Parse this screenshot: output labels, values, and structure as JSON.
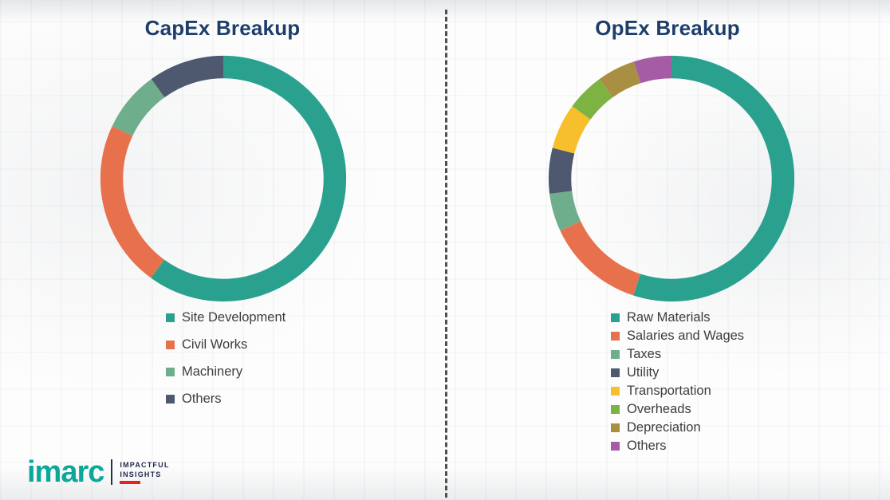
{
  "chart_data": [
    {
      "type": "pie",
      "subtype": "donut",
      "title": "CapEx Breakup",
      "labels": [
        "Site Development",
        "Civil Works",
        "Machinery",
        "Others"
      ],
      "values": [
        60,
        22,
        8,
        10
      ],
      "colors": [
        "#2AA18F",
        "#E7714C",
        "#6FAE8C",
        "#4E586E"
      ],
      "legend_position": "bottom-left",
      "start_angle_deg": -90,
      "direction": "clockwise"
    },
    {
      "type": "pie",
      "subtype": "donut",
      "title": "OpEx Breakup",
      "labels": [
        "Raw Materials",
        "Salaries and Wages",
        "Taxes",
        "Utility",
        "Transportation",
        "Overheads",
        "Depreciation",
        "Others"
      ],
      "values": [
        55,
        13,
        5,
        6,
        6,
        5,
        5,
        5
      ],
      "colors": [
        "#2AA18F",
        "#E7714C",
        "#6FAE8C",
        "#4E586E",
        "#F7BF2B",
        "#7CB342",
        "#A98F41",
        "#A55CA5"
      ],
      "legend_position": "bottom-left",
      "start_angle_deg": -90,
      "direction": "clockwise"
    }
  ],
  "logo": {
    "brand": "imarc",
    "tagline_line1": "IMPACTFUL",
    "tagline_line2": "INSIGHTS",
    "brand_color": "#0BA79B",
    "accent_color": "#E8231A"
  },
  "styles": {
    "title_color": "#1D3E6B",
    "legend_text_color": "#3d3d3d",
    "divider_color": "#4f4f4f"
  }
}
